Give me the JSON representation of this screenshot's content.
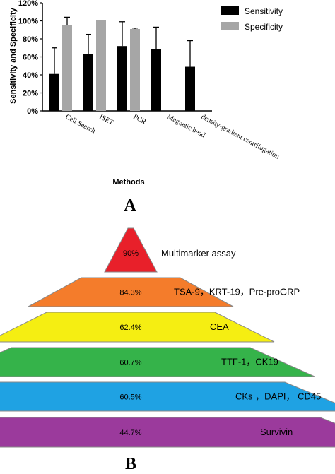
{
  "chart_data": [
    {
      "type": "bar",
      "panel_label": "A",
      "categories": [
        "Cell Search",
        "ISET",
        "PCR",
        "Magnetic bead",
        "density-gradient centrifugation"
      ],
      "series": [
        {
          "name": "Sensitivity",
          "color": "#000000",
          "values": [
            41,
            63,
            72,
            69,
            49
          ],
          "error_upper": [
            70,
            85,
            99,
            93,
            78
          ]
        },
        {
          "name": "Specificity",
          "color": "#a6a6a6",
          "values": [
            95,
            101,
            91,
            null,
            null
          ],
          "error_upper": [
            104,
            null,
            92,
            null,
            null
          ]
        }
      ],
      "xlabel": "Methods",
      "ylabel": "Sensitivity and Specificity",
      "yticks": [
        "0%",
        "20%",
        "40%",
        "60%",
        "80%",
        "100%",
        "120%"
      ],
      "ylim": [
        0,
        120
      ],
      "legend_position": "top-right"
    },
    {
      "type": "pyramid",
      "panel_label": "B",
      "levels": [
        {
          "value": "90%",
          "label": "Multimarker assay",
          "color": "#e8202a"
        },
        {
          "value": "84.3%",
          "label": "TSA-9，KRT-19，Pre-proGRP",
          "color": "#f47c2b"
        },
        {
          "value": "62.4%",
          "label": "CEA",
          "color": "#f5ee12"
        },
        {
          "value": "60.7%",
          "label": "TTF-1，CK19",
          "color": "#35b34a"
        },
        {
          "value": "60.5%",
          "label": "CKs ，DAPI， CD45",
          "color": "#1fa2e3"
        },
        {
          "value": "44.7%",
          "label": "Survivin",
          "color": "#9b3a9c"
        }
      ]
    }
  ]
}
